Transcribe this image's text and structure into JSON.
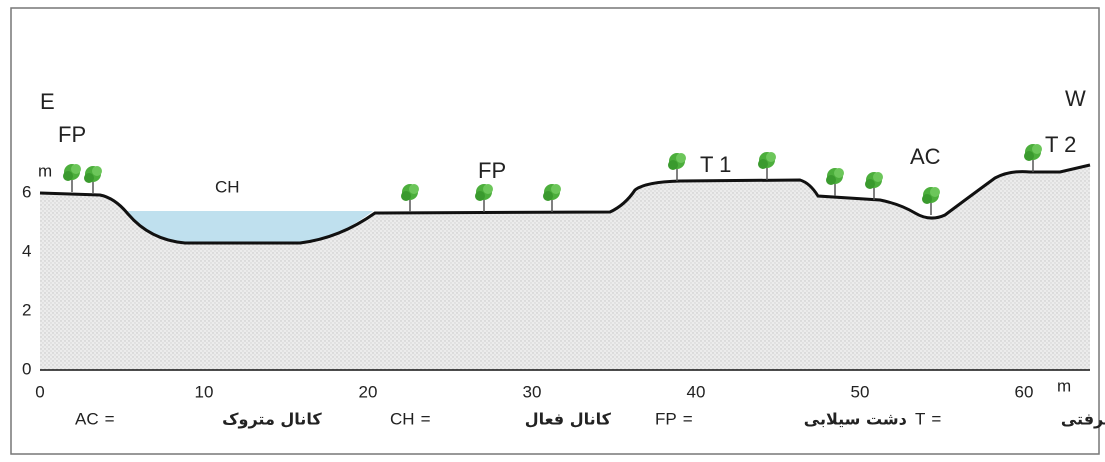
{
  "labels": {
    "east": "E",
    "west": "W",
    "fp_left": "FP",
    "fp_mid": "FP",
    "t1": "T 1",
    "t2": "T 2",
    "ac": "AC",
    "ch": "CH"
  },
  "axes": {
    "y_unit": "m",
    "y_ticks": [
      0,
      2,
      4,
      6
    ],
    "x_unit": "m",
    "x_ticks": [
      0,
      10,
      20,
      30,
      40,
      50,
      60
    ]
  },
  "legend": [
    {
      "abbr": "AC",
      "meaning": "کانال متروک"
    },
    {
      "abbr": "CH",
      "meaning": "کانال فعال"
    },
    {
      "abbr": "FP",
      "meaning": "دشت سیلابی"
    },
    {
      "abbr": "T",
      "meaning": "پادگانه آبرفتی"
    }
  ]
}
